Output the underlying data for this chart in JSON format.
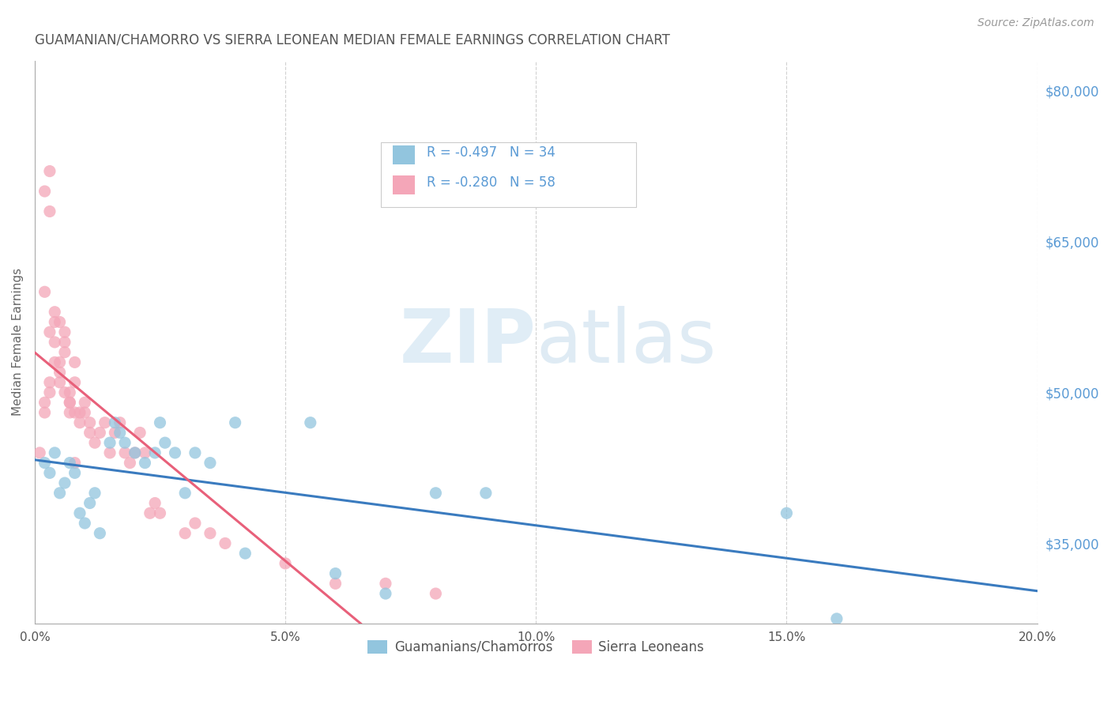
{
  "title": "GUAMANIAN/CHAMORRO VS SIERRA LEONEAN MEDIAN FEMALE EARNINGS CORRELATION CHART",
  "source": "Source: ZipAtlas.com",
  "ylabel": "Median Female Earnings",
  "xlim": [
    0.0,
    0.2
  ],
  "ylim": [
    27000,
    83000
  ],
  "xtick_labels": [
    "0.0%",
    "5.0%",
    "10.0%",
    "15.0%",
    "20.0%"
  ],
  "xtick_vals": [
    0.0,
    0.05,
    0.1,
    0.15,
    0.2
  ],
  "ytick_labels": [
    "$35,000",
    "$50,000",
    "$65,000",
    "$80,000"
  ],
  "ytick_vals": [
    35000,
    50000,
    65000,
    80000
  ],
  "watermark_zip": "ZIP",
  "watermark_atlas": "atlas",
  "legend_label_1": "Guamanians/Chamorros",
  "legend_label_2": "Sierra Leoneans",
  "legend_R1": "-0.497",
  "legend_N1": "34",
  "legend_R2": "-0.280",
  "legend_N2": "58",
  "color_blue": "#92c5de",
  "color_pink": "#f4a6b8",
  "trendline_blue": "#3a7bbf",
  "trendline_pink": "#e8607a",
  "trendline_dashed_color": "#c8c8c8",
  "background": "#ffffff",
  "grid_color": "#cccccc",
  "title_color": "#555555",
  "axis_label_color": "#666666",
  "right_ytick_color": "#5b9bd5",
  "legend_text_color": "#5b9bd5",
  "bottom_legend_color": "#555555",
  "blue_x": [
    0.002,
    0.003,
    0.004,
    0.005,
    0.006,
    0.007,
    0.008,
    0.009,
    0.01,
    0.011,
    0.012,
    0.013,
    0.015,
    0.016,
    0.017,
    0.018,
    0.02,
    0.022,
    0.024,
    0.025,
    0.026,
    0.028,
    0.03,
    0.032,
    0.035,
    0.04,
    0.042,
    0.055,
    0.06,
    0.07,
    0.08,
    0.09,
    0.15,
    0.16
  ],
  "blue_y": [
    43000,
    42000,
    44000,
    40000,
    41000,
    43000,
    42000,
    38000,
    37000,
    39000,
    40000,
    36000,
    45000,
    47000,
    46000,
    45000,
    44000,
    43000,
    44000,
    47000,
    45000,
    44000,
    40000,
    44000,
    43000,
    47000,
    34000,
    47000,
    32000,
    30000,
    40000,
    40000,
    38000,
    27500
  ],
  "pink_x": [
    0.001,
    0.002,
    0.002,
    0.003,
    0.003,
    0.004,
    0.004,
    0.005,
    0.005,
    0.006,
    0.006,
    0.007,
    0.007,
    0.008,
    0.008,
    0.009,
    0.009,
    0.01,
    0.01,
    0.011,
    0.011,
    0.012,
    0.013,
    0.014,
    0.015,
    0.016,
    0.017,
    0.018,
    0.019,
    0.02,
    0.021,
    0.022,
    0.023,
    0.024,
    0.025,
    0.03,
    0.032,
    0.035,
    0.038,
    0.05,
    0.06,
    0.07,
    0.08,
    0.002,
    0.003,
    0.003,
    0.004,
    0.005,
    0.006,
    0.007,
    0.008,
    0.002,
    0.003,
    0.004,
    0.005,
    0.006,
    0.007,
    0.008
  ],
  "pink_y": [
    44000,
    48000,
    49000,
    50000,
    51000,
    55000,
    57000,
    52000,
    53000,
    54000,
    56000,
    50000,
    49000,
    51000,
    53000,
    48000,
    47000,
    49000,
    48000,
    47000,
    46000,
    45000,
    46000,
    47000,
    44000,
    46000,
    47000,
    44000,
    43000,
    44000,
    46000,
    44000,
    38000,
    39000,
    38000,
    36000,
    37000,
    36000,
    35000,
    33000,
    31000,
    31000,
    30000,
    70000,
    72000,
    68000,
    58000,
    57000,
    55000,
    48000,
    43000,
    60000,
    56000,
    53000,
    51000,
    50000,
    49000,
    48000
  ]
}
